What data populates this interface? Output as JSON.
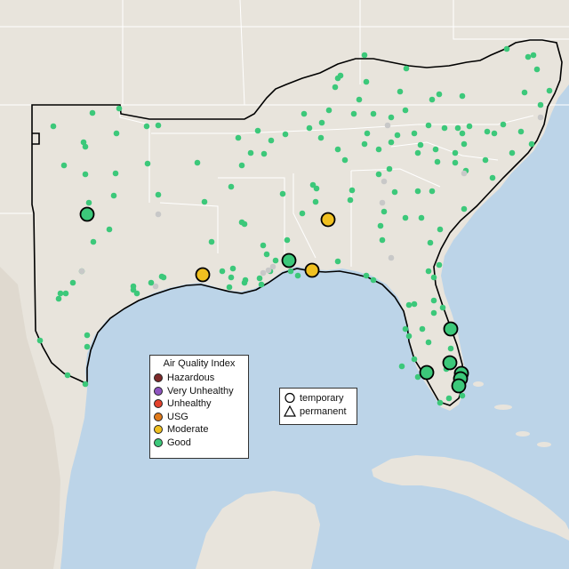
{
  "legend": {
    "title": "Air Quality Index",
    "categories": [
      {
        "label": "Hazardous",
        "color": "#7e2a2a"
      },
      {
        "label": "Very Unhealthy",
        "color": "#8f55c0"
      },
      {
        "label": "Unhealthy",
        "color": "#e4412b"
      },
      {
        "label": "USG",
        "color": "#e07a1b"
      },
      {
        "label": "Moderate",
        "color": "#f0c020"
      },
      {
        "label": "Good",
        "color": "#3cc87a"
      }
    ]
  },
  "shape_legend": {
    "temporary": "temporary",
    "permanent": "permanent"
  },
  "colors": {
    "water": "#bcd4e8",
    "land": "#e8e4dc",
    "border": "#ffffff",
    "region_outline": "#000000",
    "good": "#3cc87a",
    "moderate": "#f0c020",
    "no_data": "#c8c8c8"
  }
}
